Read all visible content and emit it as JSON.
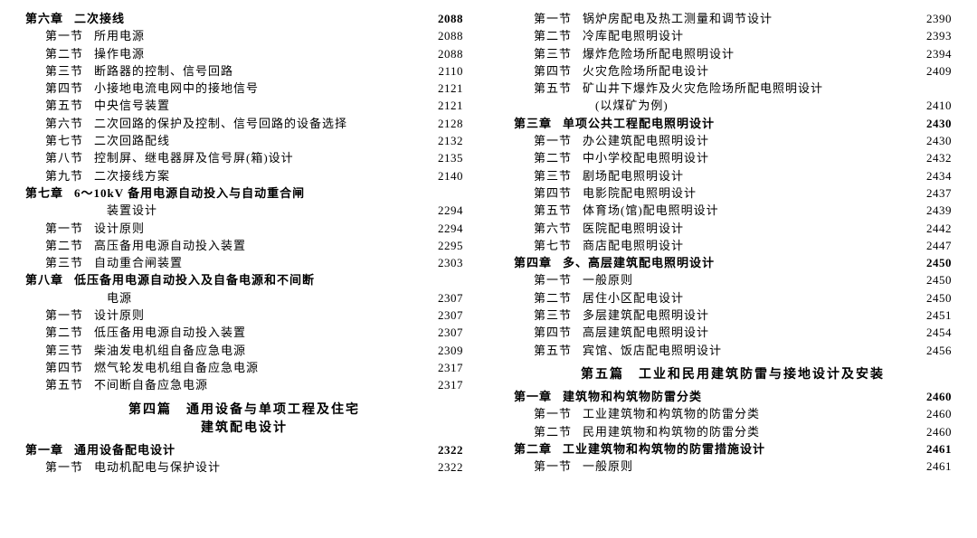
{
  "left": {
    "entries": [
      {
        "type": "chapter",
        "label": "第六章",
        "title": "二次接线",
        "page": "2088"
      },
      {
        "type": "section",
        "label": "第一节",
        "title": "所用电源",
        "page": "2088"
      },
      {
        "type": "section",
        "label": "第二节",
        "title": "操作电源",
        "page": "2088"
      },
      {
        "type": "section",
        "label": "第三节",
        "title": "断路器的控制、信号回路",
        "page": "2110"
      },
      {
        "type": "section",
        "label": "第四节",
        "title": "小接地电流电网中的接地信号",
        "page": "2121"
      },
      {
        "type": "section",
        "label": "第五节",
        "title": "中央信号装置",
        "page": "2121"
      },
      {
        "type": "section",
        "label": "第六节",
        "title": "二次回路的保护及控制、信号回路的设备选择",
        "page": "2128"
      },
      {
        "type": "section",
        "label": "第七节",
        "title": "二次回路配线",
        "page": "2132"
      },
      {
        "type": "section",
        "label": "第八节",
        "title": "控制屏、继电器屏及信号屏(箱)设计",
        "page": "2135"
      },
      {
        "type": "section",
        "label": "第九节",
        "title": "二次接线方案",
        "page": "2140"
      },
      {
        "type": "chapter",
        "label": "第七章",
        "title": "6～10kV 备用电源自动投入与自动重合闸",
        "page": ""
      },
      {
        "type": "cont",
        "title": "装置设计",
        "page": "2294"
      },
      {
        "type": "section",
        "label": "第一节",
        "title": "设计原则",
        "page": "2294"
      },
      {
        "type": "section",
        "label": "第二节",
        "title": "高压备用电源自动投入装置",
        "page": "2295"
      },
      {
        "type": "section",
        "label": "第三节",
        "title": "自动重合闸装置",
        "page": "2303"
      },
      {
        "type": "chapter",
        "label": "第八章",
        "title": "低压备用电源自动投入及自备电源和不间断",
        "page": ""
      },
      {
        "type": "cont",
        "title": "电源",
        "page": "2307"
      },
      {
        "type": "section",
        "label": "第一节",
        "title": "设计原则",
        "page": "2307"
      },
      {
        "type": "section",
        "label": "第二节",
        "title": "低压备用电源自动投入装置",
        "page": "2307"
      },
      {
        "type": "section",
        "label": "第三节",
        "title": "柴油发电机组自备应急电源",
        "page": "2309"
      },
      {
        "type": "section",
        "label": "第四节",
        "title": "燃气轮发电机组自备应急电源",
        "page": "2317"
      },
      {
        "type": "section",
        "label": "第五节",
        "title": "不间断自备应急电源",
        "page": "2317"
      }
    ],
    "part_heading": "第四篇　通用设备与单项工程及住宅",
    "part_sub": "建筑配电设计",
    "after_part": [
      {
        "type": "chapter",
        "label": "第一章",
        "title": "通用设备配电设计",
        "page": "2322"
      },
      {
        "type": "section",
        "label": "第一节",
        "title": "电动机配电与保护设计",
        "page": "2322"
      }
    ]
  },
  "right": {
    "entries": [
      {
        "type": "section",
        "label": "第一节",
        "title": "锅炉房配电及热工测量和调节设计",
        "page": "2390"
      },
      {
        "type": "section",
        "label": "第二节",
        "title": "冷库配电照明设计",
        "page": "2393"
      },
      {
        "type": "section",
        "label": "第三节",
        "title": "爆炸危险场所配电照明设计",
        "page": "2394"
      },
      {
        "type": "section",
        "label": "第四节",
        "title": "火灾危险场所配电设计",
        "page": "2409"
      },
      {
        "type": "section",
        "label": "第五节",
        "title": "矿山井下爆炸及火灾危险场所配电照明设计",
        "page": ""
      },
      {
        "type": "cont",
        "title": "(以煤矿为例)",
        "page": "2410"
      },
      {
        "type": "chapter",
        "label": "第三章",
        "title": "单项公共工程配电照明设计",
        "page": "2430"
      },
      {
        "type": "section",
        "label": "第一节",
        "title": "办公建筑配电照明设计",
        "page": "2430"
      },
      {
        "type": "section",
        "label": "第二节",
        "title": "中小学校配电照明设计",
        "page": "2432"
      },
      {
        "type": "section",
        "label": "第三节",
        "title": "剧场配电照明设计",
        "page": "2434"
      },
      {
        "type": "section",
        "label": "第四节",
        "title": "电影院配电照明设计",
        "page": "2437"
      },
      {
        "type": "section",
        "label": "第五节",
        "title": "体育场(馆)配电照明设计",
        "page": "2439"
      },
      {
        "type": "section",
        "label": "第六节",
        "title": "医院配电照明设计",
        "page": "2442"
      },
      {
        "type": "section",
        "label": "第七节",
        "title": "商店配电照明设计",
        "page": "2447"
      },
      {
        "type": "chapter",
        "label": "第四章",
        "title": "多、高层建筑配电照明设计",
        "page": "2450"
      },
      {
        "type": "section",
        "label": "第一节",
        "title": "一般原则",
        "page": "2450"
      },
      {
        "type": "section",
        "label": "第二节",
        "title": "居住小区配电设计",
        "page": "2450"
      },
      {
        "type": "section",
        "label": "第三节",
        "title": "多层建筑配电照明设计",
        "page": "2451"
      },
      {
        "type": "section",
        "label": "第四节",
        "title": "高层建筑配电照明设计",
        "page": "2454"
      },
      {
        "type": "section",
        "label": "第五节",
        "title": "宾馆、饭店配电照明设计",
        "page": "2456"
      }
    ],
    "part_heading": "第五篇　工业和民用建筑防雷与接地设计及安装",
    "after_part": [
      {
        "type": "chapter",
        "label": "第一章",
        "title": "建筑物和构筑物防雷分类",
        "page": "2460"
      },
      {
        "type": "section",
        "label": "第一节",
        "title": "工业建筑物和构筑物的防雷分类",
        "page": "2460"
      },
      {
        "type": "section",
        "label": "第二节",
        "title": "民用建筑物和构筑物的防雷分类",
        "page": "2460"
      },
      {
        "type": "chapter",
        "label": "第二章",
        "title": "工业建筑物和构筑物的防雷措施设计",
        "page": "2461"
      },
      {
        "type": "section",
        "label": "第一节",
        "title": "一般原则",
        "page": "2461"
      }
    ]
  }
}
